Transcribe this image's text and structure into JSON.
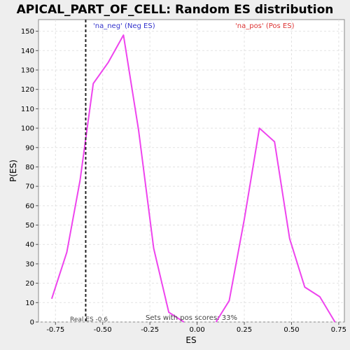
{
  "chart_data": {
    "type": "line",
    "title": "APICAL_PART_OF_CELL: Random ES distribution",
    "xlabel": "ES",
    "ylabel": "P(ES)",
    "xlim": [
      -0.84,
      0.78
    ],
    "ylim": [
      0,
      156
    ],
    "x_ticks": [
      "-0.75",
      "-0.50",
      "-0.25",
      "0.00",
      "0.25",
      "0.50",
      "0.75"
    ],
    "x_tick_values": [
      -0.75,
      -0.5,
      -0.25,
      0.0,
      0.25,
      0.5,
      0.75
    ],
    "y_ticks": [
      "0",
      "10",
      "20",
      "30",
      "40",
      "50",
      "60",
      "70",
      "80",
      "90",
      "100",
      "110",
      "120",
      "130",
      "140",
      "150"
    ],
    "y_tick_values": [
      0,
      10,
      20,
      30,
      40,
      50,
      60,
      70,
      80,
      90,
      100,
      110,
      120,
      130,
      140,
      150
    ],
    "grid": true,
    "series": [
      {
        "label": "'na_neg' (Neg ES)",
        "color": "#ee44ee",
        "x": [
          -0.77,
          -0.69,
          -0.62,
          -0.55,
          -0.47,
          -0.39,
          -0.31,
          -0.23,
          -0.15,
          -0.07
        ],
        "y": [
          12,
          36,
          73,
          123,
          134,
          148,
          99,
          38,
          5,
          0
        ]
      },
      {
        "label": "'na_pos' (Pos ES)",
        "color": "#ee44ee",
        "x": [
          0.1,
          0.17,
          0.25,
          0.33,
          0.41,
          0.49,
          0.57,
          0.65,
          0.73
        ],
        "y": [
          0,
          11,
          53,
          100,
          93,
          43,
          18,
          13,
          0
        ]
      }
    ],
    "legend": [
      {
        "text": "'na_neg' (Neg ES)",
        "color": "#3333cc",
        "placement": "top-left"
      },
      {
        "text": "'na_pos' (Pos ES)",
        "color": "#dd3333",
        "placement": "top-right"
      }
    ],
    "real_es": {
      "value": -0.59,
      "label": "Real ES -0.6"
    },
    "annotation": "Sets with pos scores: 33%"
  }
}
